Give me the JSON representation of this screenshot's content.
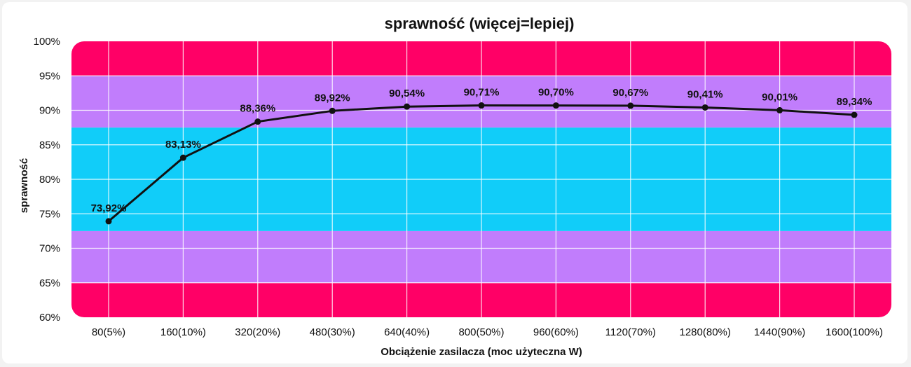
{
  "chart_data": {
    "type": "line",
    "title": "sprawność (więcej=lepiej)",
    "xlabel": "Obciążenie zasilacza (moc użyteczna W)",
    "ylabel": "sprawność",
    "categories": [
      "80(5%)",
      "160(10%)",
      "320(20%)",
      "480(30%)",
      "640(40%)",
      "800(50%)",
      "960(60%)",
      "1120(70%)",
      "1280(80%)",
      "1440(90%)",
      "1600(100%)"
    ],
    "series": [
      {
        "values": [
          73.92,
          83.13,
          88.36,
          89.92,
          90.54,
          90.71,
          90.7,
          90.67,
          90.41,
          90.01,
          89.34
        ],
        "labels": [
          "73,92%",
          "83,13%",
          "88,36%",
          "89,92%",
          "90,54%",
          "90,71%",
          "90,70%",
          "90,67%",
          "90,41%",
          "90,01%",
          "89,34%"
        ]
      }
    ],
    "ylim": [
      60,
      100
    ],
    "yticks": [
      "60%",
      "65%",
      "70%",
      "75%",
      "80%",
      "85%",
      "90%",
      "95%",
      "100%"
    ],
    "grid": true,
    "bands": [
      {
        "from": 60,
        "to": 65,
        "color": "#ff0066"
      },
      {
        "from": 65,
        "to": 72.5,
        "color": "#c17dfc"
      },
      {
        "from": 72.5,
        "to": 87.5,
        "color": "#11cdf9"
      },
      {
        "from": 87.5,
        "to": 95,
        "color": "#c17dfc"
      },
      {
        "from": 95,
        "to": 100,
        "color": "#ff0066"
      }
    ],
    "line_color": "#111111"
  }
}
